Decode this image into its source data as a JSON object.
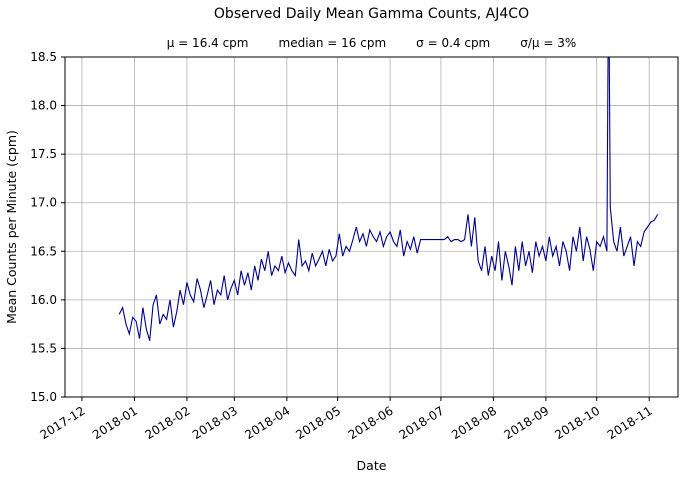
{
  "chart_data": {
    "type": "line",
    "title": "Observed Daily Mean Gamma Counts, AJ4CO",
    "stats": {
      "mu": "μ = 16.4 cpm",
      "median": "median = 16 cpm",
      "sigma": "σ = 0.4 cpm",
      "sigma_over_mu": "σ/μ = 3%"
    },
    "xlabel": "Date",
    "ylabel": "Mean Counts per Minute (cpm)",
    "ylim": [
      15.0,
      18.5
    ],
    "yticks": [
      15.0,
      15.5,
      16.0,
      16.5,
      17.0,
      17.5,
      18.0,
      18.5
    ],
    "xtick_labels": [
      "2017-12",
      "2018-01",
      "2018-02",
      "2018-03",
      "2018-04",
      "2018-05",
      "2018-06",
      "2018-07",
      "2018-08",
      "2018-09",
      "2018-10",
      "2018-11"
    ],
    "xtick_days": [
      0,
      31,
      62,
      90,
      121,
      151,
      182,
      212,
      243,
      274,
      304,
      335
    ],
    "x_domain": [
      -10,
      352
    ],
    "grid": true,
    "legend": "none",
    "series": [
      {
        "name": "daily mean gamma counts",
        "color": "#00008b",
        "points": [
          [
            22,
            15.85
          ],
          [
            24,
            15.92
          ],
          [
            26,
            15.75
          ],
          [
            28,
            15.65
          ],
          [
            30,
            15.82
          ],
          [
            32,
            15.78
          ],
          [
            34,
            15.6
          ],
          [
            36,
            15.92
          ],
          [
            38,
            15.7
          ],
          [
            40,
            15.58
          ],
          [
            42,
            15.95
          ],
          [
            44,
            16.05
          ],
          [
            46,
            15.75
          ],
          [
            48,
            15.85
          ],
          [
            50,
            15.8
          ],
          [
            52,
            16.0
          ],
          [
            54,
            15.72
          ],
          [
            56,
            15.88
          ],
          [
            58,
            16.1
          ],
          [
            60,
            15.95
          ],
          [
            62,
            16.18
          ],
          [
            64,
            16.05
          ],
          [
            66,
            15.98
          ],
          [
            68,
            16.22
          ],
          [
            70,
            16.1
          ],
          [
            72,
            15.92
          ],
          [
            74,
            16.05
          ],
          [
            76,
            16.2
          ],
          [
            78,
            15.95
          ],
          [
            80,
            16.1
          ],
          [
            82,
            16.05
          ],
          [
            84,
            16.25
          ],
          [
            86,
            16.0
          ],
          [
            88,
            16.12
          ],
          [
            90,
            16.2
          ],
          [
            92,
            16.05
          ],
          [
            94,
            16.3
          ],
          [
            96,
            16.15
          ],
          [
            98,
            16.28
          ],
          [
            100,
            16.1
          ],
          [
            102,
            16.35
          ],
          [
            104,
            16.2
          ],
          [
            106,
            16.42
          ],
          [
            108,
            16.3
          ],
          [
            110,
            16.5
          ],
          [
            112,
            16.25
          ],
          [
            114,
            16.35
          ],
          [
            116,
            16.3
          ],
          [
            118,
            16.45
          ],
          [
            120,
            16.28
          ],
          [
            122,
            16.38
          ],
          [
            124,
            16.3
          ],
          [
            126,
            16.25
          ],
          [
            128,
            16.62
          ],
          [
            130,
            16.35
          ],
          [
            132,
            16.4
          ],
          [
            134,
            16.3
          ],
          [
            136,
            16.48
          ],
          [
            138,
            16.35
          ],
          [
            140,
            16.42
          ],
          [
            142,
            16.5
          ],
          [
            144,
            16.35
          ],
          [
            146,
            16.52
          ],
          [
            148,
            16.4
          ],
          [
            150,
            16.45
          ],
          [
            152,
            16.68
          ],
          [
            154,
            16.45
          ],
          [
            156,
            16.55
          ],
          [
            158,
            16.5
          ],
          [
            160,
            16.62
          ],
          [
            162,
            16.75
          ],
          [
            164,
            16.6
          ],
          [
            166,
            16.68
          ],
          [
            168,
            16.55
          ],
          [
            170,
            16.72
          ],
          [
            172,
            16.65
          ],
          [
            174,
            16.6
          ],
          [
            176,
            16.7
          ],
          [
            178,
            16.55
          ],
          [
            180,
            16.65
          ],
          [
            182,
            16.7
          ],
          [
            184,
            16.6
          ],
          [
            186,
            16.55
          ],
          [
            188,
            16.72
          ],
          [
            190,
            16.45
          ],
          [
            192,
            16.6
          ],
          [
            194,
            16.52
          ],
          [
            196,
            16.65
          ],
          [
            198,
            16.48
          ],
          [
            200,
            16.62
          ],
          [
            202,
            16.62
          ],
          [
            204,
            16.62
          ],
          [
            206,
            16.62
          ],
          [
            208,
            16.62
          ],
          [
            210,
            16.62
          ],
          [
            212,
            16.62
          ],
          [
            214,
            16.62
          ],
          [
            216,
            16.65
          ],
          [
            218,
            16.6
          ],
          [
            220,
            16.62
          ],
          [
            222,
            16.62
          ],
          [
            224,
            16.6
          ],
          [
            226,
            16.62
          ],
          [
            228,
            16.88
          ],
          [
            230,
            16.55
          ],
          [
            232,
            16.85
          ],
          [
            234,
            16.4
          ],
          [
            236,
            16.3
          ],
          [
            238,
            16.55
          ],
          [
            240,
            16.25
          ],
          [
            242,
            16.45
          ],
          [
            244,
            16.3
          ],
          [
            246,
            16.6
          ],
          [
            248,
            16.2
          ],
          [
            250,
            16.5
          ],
          [
            252,
            16.35
          ],
          [
            254,
            16.15
          ],
          [
            256,
            16.55
          ],
          [
            258,
            16.3
          ],
          [
            260,
            16.6
          ],
          [
            262,
            16.35
          ],
          [
            264,
            16.5
          ],
          [
            266,
            16.28
          ],
          [
            268,
            16.6
          ],
          [
            270,
            16.45
          ],
          [
            272,
            16.55
          ],
          [
            274,
            16.4
          ],
          [
            276,
            16.65
          ],
          [
            278,
            16.45
          ],
          [
            280,
            16.55
          ],
          [
            282,
            16.35
          ],
          [
            284,
            16.6
          ],
          [
            286,
            16.5
          ],
          [
            288,
            16.3
          ],
          [
            290,
            16.65
          ],
          [
            292,
            16.5
          ],
          [
            294,
            16.75
          ],
          [
            296,
            16.4
          ],
          [
            298,
            16.65
          ],
          [
            300,
            16.52
          ],
          [
            302,
            16.3
          ],
          [
            304,
            16.6
          ],
          [
            306,
            16.55
          ],
          [
            308,
            16.65
          ],
          [
            310,
            16.5
          ],
          [
            311,
            19.5
          ],
          [
            312,
            16.95
          ],
          [
            314,
            16.6
          ],
          [
            316,
            16.5
          ],
          [
            318,
            16.75
          ],
          [
            320,
            16.45
          ],
          [
            322,
            16.55
          ],
          [
            324,
            16.65
          ],
          [
            326,
            16.35
          ],
          [
            328,
            16.6
          ],
          [
            330,
            16.55
          ],
          [
            332,
            16.7
          ],
          [
            334,
            16.75
          ],
          [
            336,
            16.8
          ],
          [
            338,
            16.82
          ],
          [
            340,
            16.88
          ]
        ]
      }
    ],
    "colors": {
      "line": "#00008b",
      "grid": "#b0b0b0",
      "axis": "#000000",
      "background": "#ffffff"
    }
  }
}
